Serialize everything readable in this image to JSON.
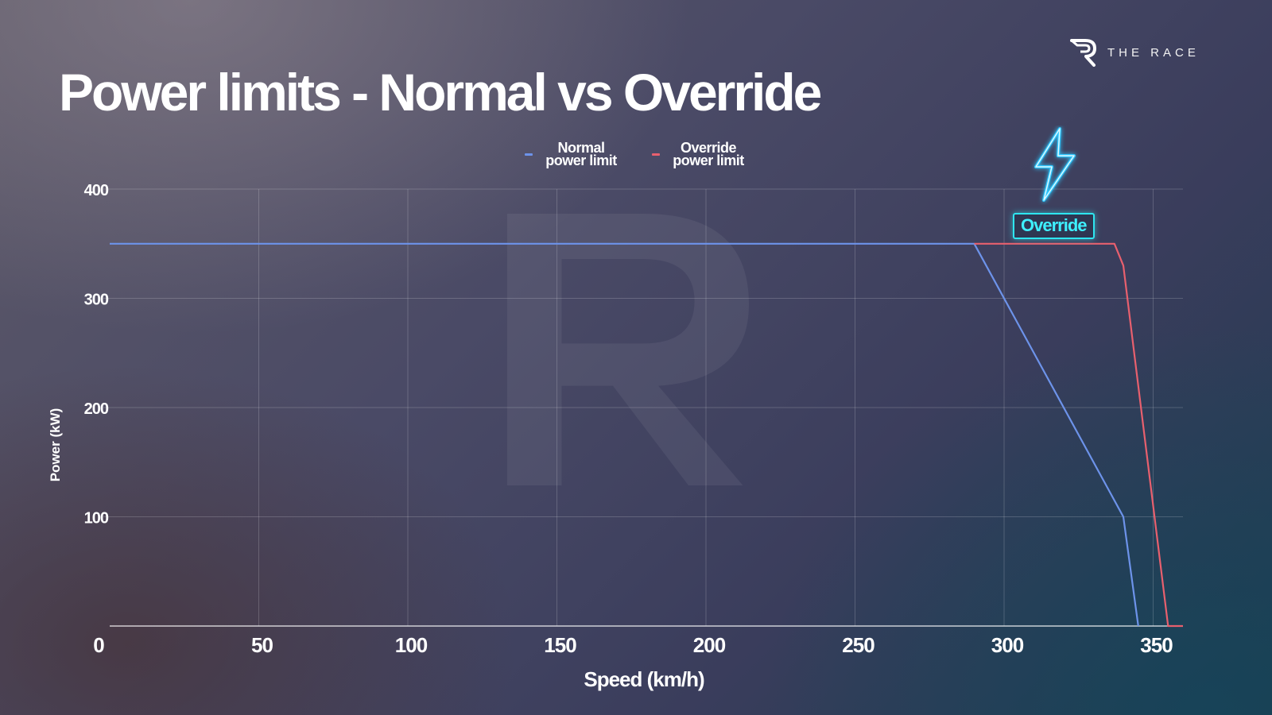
{
  "header": {
    "title": "Power limits - Normal vs Override",
    "brand": "THE RACE"
  },
  "annotation": {
    "label": "Override",
    "icon": "lightning-bolt-icon"
  },
  "colors": {
    "normal": "#6d93ea",
    "override": "#e8606e",
    "override_badge": "#2ee6f0",
    "grid": "rgba(255,255,255,0.18)"
  },
  "chart_data": {
    "type": "line",
    "xlabel": "Speed (km/h)",
    "ylabel": "Power (kW)",
    "xlim": [
      0,
      360
    ],
    "ylim": [
      0,
      400
    ],
    "x_ticks": [
      0,
      50,
      100,
      150,
      200,
      250,
      300,
      350
    ],
    "y_ticks": [
      100,
      200,
      300,
      400
    ],
    "y_ticks_labeled": [
      "100",
      "200",
      "300",
      "400"
    ],
    "grid": true,
    "legend_position": "top-center",
    "series": [
      {
        "name": "Normal power limit",
        "points": [
          [
            0,
            350
          ],
          [
            290,
            350
          ],
          [
            340,
            100
          ],
          [
            345,
            0
          ]
        ]
      },
      {
        "name": "Override power limit",
        "points": [
          [
            290,
            350
          ],
          [
            337,
            350
          ],
          [
            340,
            330
          ],
          [
            355,
            0
          ],
          [
            360,
            0
          ]
        ]
      }
    ]
  }
}
